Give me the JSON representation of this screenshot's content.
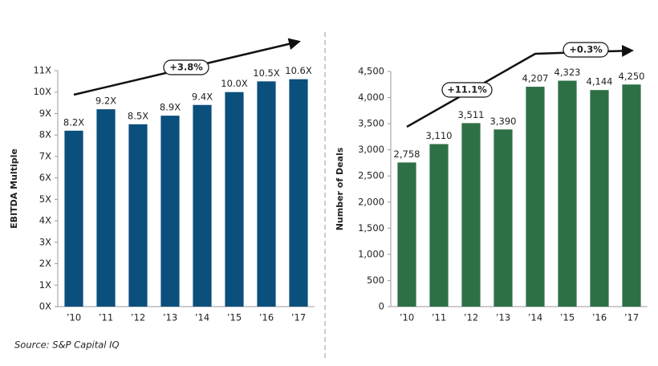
{
  "chart_data": [
    {
      "type": "bar",
      "y_label": "EBITDA Multiple",
      "source": "Source: S&P Capital IQ",
      "categories": [
        "’10",
        "’11",
        "’12",
        "’13",
        "’14",
        "’15",
        "’16",
        "’17"
      ],
      "values": [
        8.2,
        9.2,
        8.5,
        8.9,
        9.4,
        10.0,
        10.5,
        10.6
      ],
      "value_labels": [
        "8.2X",
        "9.2X",
        "8.5X",
        "8.9X",
        "9.4X",
        "10.0X",
        "10.5X",
        "10.6X"
      ],
      "color": "#0b4f7c",
      "ylim": [
        0,
        11
      ],
      "yticks": [
        {
          "value": 0,
          "label": "0X"
        },
        {
          "value": 1,
          "label": "1X"
        },
        {
          "value": 2,
          "label": "2X"
        },
        {
          "value": 3,
          "label": "3X"
        },
        {
          "value": 4,
          "label": "4X"
        },
        {
          "value": 5,
          "label": "5X"
        },
        {
          "value": 6,
          "label": "6X"
        },
        {
          "value": 7,
          "label": "7X"
        },
        {
          "value": 8,
          "label": "8X"
        },
        {
          "value": 9,
          "label": "9X"
        },
        {
          "value": 10,
          "label": "10X"
        },
        {
          "value": 11,
          "label": "11X"
        }
      ],
      "annotations": [
        "+3.8%"
      ]
    },
    {
      "type": "bar",
      "y_label": "Number of Deals",
      "categories": [
        "’10",
        "’11",
        "’12",
        "’13",
        "’14",
        "’15",
        "’16",
        "’17"
      ],
      "values": [
        2758,
        3110,
        3511,
        3390,
        4207,
        4323,
        4144,
        4250
      ],
      "value_labels": [
        "2,758",
        "3,110",
        "3,511",
        "3,390",
        "4,207",
        "4,323",
        "4,144",
        "4,250"
      ],
      "color": "#2e7045",
      "ylim": [
        0,
        4500
      ],
      "yticks": [
        0,
        500,
        {
          "value": 1000,
          "label": "1,000"
        },
        {
          "value": 1500,
          "label": "1,500"
        },
        {
          "value": 2000,
          "label": "2,000"
        },
        {
          "value": 2500,
          "label": "2,500"
        },
        {
          "value": 3000,
          "label": "3,000"
        },
        {
          "value": 3500,
          "label": "3,500"
        },
        {
          "value": 4000,
          "label": "4,000"
        },
        {
          "value": 4500,
          "label": "4,500"
        }
      ],
      "annotations": [
        "+11.1%",
        "+0.3%"
      ]
    }
  ]
}
